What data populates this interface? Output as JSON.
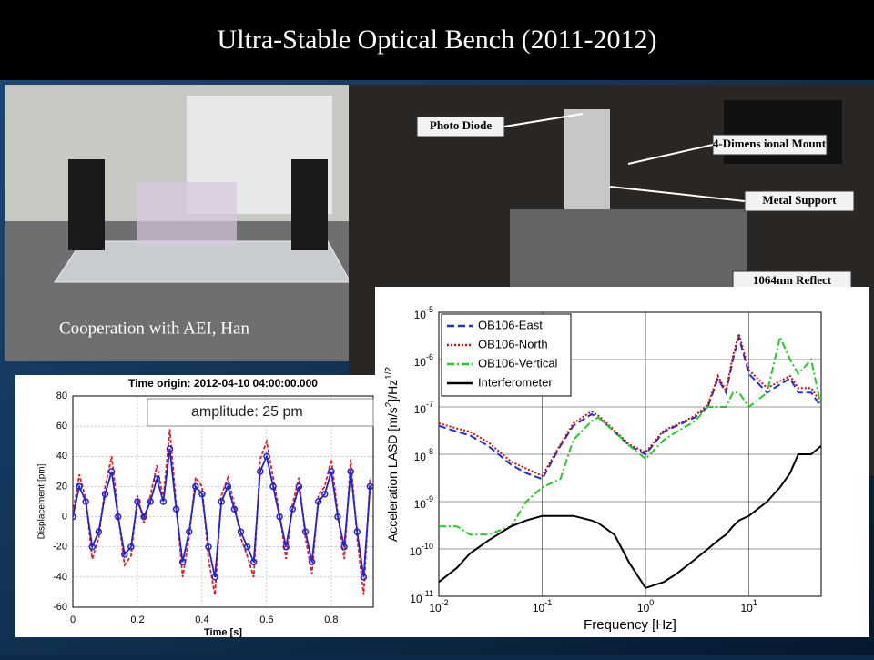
{
  "title": "Ultra-Stable Optical Bench (2011-2012)",
  "caption": "Cooperation with AEI, Han",
  "photo_labels": [
    "Photo Diode",
    "4-Dimens ional Mount",
    "Metal Support",
    "1064nm Reflect"
  ],
  "chart_data": [
    {
      "type": "line",
      "title": "Time origin: 2012-04-10 04:00:00.000",
      "annotation": "amplitude: 25 pm",
      "xlabel": "Time [s]",
      "ylabel": "Displacement [pm]",
      "x": [
        0,
        0.02,
        0.04,
        0.06,
        0.08,
        0.1,
        0.12,
        0.14,
        0.16,
        0.18,
        0.2,
        0.22,
        0.24,
        0.26,
        0.28,
        0.3,
        0.32,
        0.34,
        0.36,
        0.38,
        0.4,
        0.42,
        0.44,
        0.46,
        0.48,
        0.5,
        0.52,
        0.54,
        0.56,
        0.58,
        0.6,
        0.62,
        0.64,
        0.66,
        0.68,
        0.7,
        0.72,
        0.74,
        0.76,
        0.78,
        0.8,
        0.82,
        0.84,
        0.86,
        0.88,
        0.9,
        0.92
      ],
      "series": [
        {
          "color": "#dd2222",
          "dash": "4,2",
          "values": [
            2,
            28,
            12,
            -28,
            -14,
            20,
            40,
            2,
            -32,
            -26,
            14,
            -4,
            14,
            34,
            12,
            58,
            8,
            -40,
            -14,
            26,
            20,
            -28,
            -52,
            14,
            26,
            8,
            -14,
            -26,
            -40,
            38,
            50,
            26,
            2,
            -28,
            8,
            26,
            -14,
            -38,
            14,
            20,
            38,
            2,
            -28,
            38,
            -14,
            -52,
            26
          ]
        },
        {
          "color": "#2222dd",
          "marker": "o",
          "values": [
            0,
            20,
            10,
            -20,
            -10,
            15,
            30,
            0,
            -25,
            -20,
            10,
            0,
            10,
            25,
            10,
            45,
            5,
            -30,
            -10,
            20,
            15,
            -20,
            -40,
            10,
            20,
            5,
            -10,
            -20,
            -30,
            30,
            40,
            20,
            0,
            -20,
            5,
            20,
            -10,
            -30,
            10,
            15,
            30,
            0,
            -20,
            30,
            -10,
            -40,
            20
          ]
        }
      ],
      "xlim": [
        0,
        0.93
      ],
      "ylim": [
        -60,
        80
      ],
      "xticks": [
        0,
        0.2,
        0.4,
        0.6,
        0.8
      ],
      "yticks": [
        -60,
        -40,
        -20,
        0,
        20,
        40,
        60,
        80
      ],
      "grid": true
    },
    {
      "type": "line",
      "log": true,
      "xlabel": "Frequency [Hz]",
      "ylabel": [
        "Acceleration LASD [m/s",
        "2",
        "]/Hz",
        "1/2"
      ],
      "x": [
        0.01,
        0.015,
        0.02,
        0.03,
        0.05,
        0.07,
        0.1,
        0.15,
        0.2,
        0.3,
        0.35,
        0.5,
        0.7,
        1,
        1.5,
        2,
        3,
        4,
        5,
        6,
        7,
        8,
        10,
        15,
        20,
        25,
        30,
        40,
        50
      ],
      "series": [
        {
          "name": "OB106-East",
          "color": "#1f2fd0",
          "dash": "8,4",
          "values": [
            4e-08,
            3e-08,
            2.5e-08,
            1.5e-08,
            6e-09,
            4e-09,
            3e-09,
            1.5e-08,
            4e-08,
            7e-08,
            6e-08,
            3e-08,
            1.5e-08,
            1e-08,
            3e-08,
            4e-08,
            6e-08,
            1e-07,
            4e-07,
            2e-07,
            1e-06,
            3e-06,
            5e-07,
            2e-07,
            3e-07,
            4e-07,
            2e-07,
            2e-07,
            1e-07
          ]
        },
        {
          "name": "OB106-North",
          "color": "#cc1111",
          "dash": "2,2",
          "values": [
            4.5e-08,
            3.5e-08,
            3e-08,
            1.8e-08,
            7e-09,
            5e-09,
            3.5e-09,
            1.6e-08,
            4.5e-08,
            8e-08,
            6.5e-08,
            3.2e-08,
            1.6e-08,
            1.1e-08,
            3.2e-08,
            4.2e-08,
            6.5e-08,
            1.1e-07,
            4.5e-07,
            2.2e-07,
            1.2e-06,
            3.5e-06,
            6e-07,
            2.5e-07,
            3.5e-07,
            4.5e-07,
            2.5e-07,
            2.5e-07,
            1.2e-07
          ]
        },
        {
          "name": "OB106-Vertical",
          "color": "#22cc22",
          "dash": "8,3,2,3",
          "values": [
            3e-10,
            3e-10,
            2e-10,
            2e-10,
            3e-10,
            1e-09,
            2e-09,
            3e-09,
            2e-08,
            5e-08,
            6e-08,
            3e-08,
            1.5e-08,
            8e-09,
            2e-08,
            3e-08,
            5e-08,
            1e-07,
            1e-07,
            1e-07,
            2e-07,
            2e-07,
            1e-07,
            2e-07,
            3e-06,
            1e-06,
            5e-07,
            1e-06,
            1e-07
          ]
        },
        {
          "name": "Interferometer",
          "color": "#000000",
          "values": [
            2e-11,
            4e-11,
            8e-11,
            1.5e-10,
            3e-10,
            4e-10,
            5e-10,
            5e-10,
            5e-10,
            4e-10,
            3.5e-10,
            2e-10,
            5e-11,
            1.5e-11,
            2e-11,
            3e-11,
            6e-11,
            1e-10,
            1.5e-10,
            2e-10,
            3e-10,
            4e-10,
            5e-10,
            1e-09,
            2e-09,
            4e-09,
            1e-08,
            1e-08,
            1.5e-08
          ]
        }
      ],
      "xlim": [
        0.01,
        50
      ],
      "ylim": [
        1e-11,
        1e-05
      ],
      "xticks": [
        {
          "value": 0.01,
          "label": "10",
          "sup": "-2"
        },
        {
          "value": 0.1,
          "label": "10",
          "sup": "-1"
        },
        {
          "value": 1,
          "label": "10",
          "sup": "0"
        },
        {
          "value": 10,
          "label": "10",
          "sup": "1"
        }
      ],
      "yticks": [
        {
          "value": 1e-11,
          "label": "10",
          "sup": "-11"
        },
        {
          "value": 1e-10,
          "label": "10",
          "sup": "-10"
        },
        {
          "value": 1e-09,
          "label": "10",
          "sup": "-9"
        },
        {
          "value": 1e-08,
          "label": "10",
          "sup": "-8"
        },
        {
          "value": 1e-07,
          "label": "10",
          "sup": "-7"
        },
        {
          "value": 1e-06,
          "label": "10",
          "sup": "-6"
        },
        {
          "value": 1e-05,
          "label": "10",
          "sup": "-5"
        }
      ],
      "grid": true,
      "legend": "upper left"
    }
  ]
}
